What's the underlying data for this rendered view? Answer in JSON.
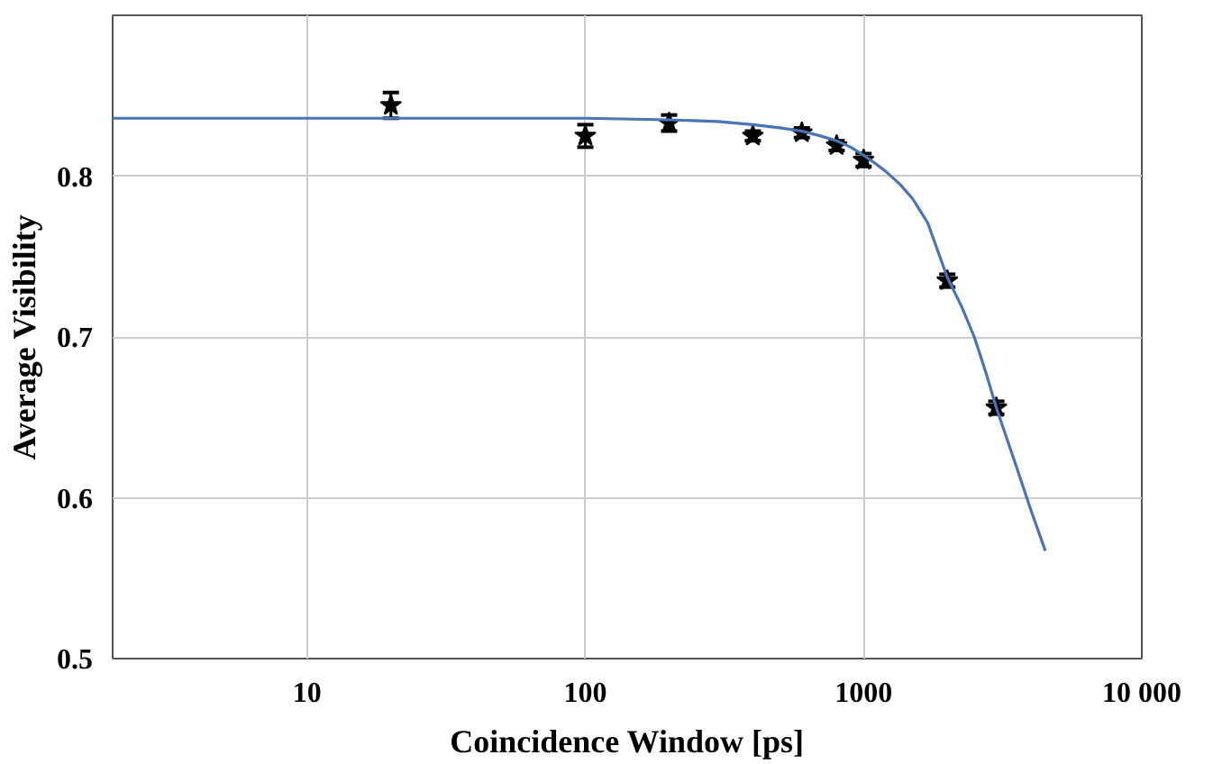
{
  "chart_data": {
    "type": "scatter",
    "xlabel": "Coincidence Window [ps]",
    "ylabel": "Average Visibility",
    "log": "x",
    "grid": true,
    "xlim": [
      2,
      10000
    ],
    "ylim": [
      0.5,
      0.9
    ],
    "xticks": [
      10,
      100,
      1000,
      {
        "value": 10000,
        "label": "10 000"
      }
    ],
    "yticks": [
      0.5,
      0.6,
      0.7,
      0.8
    ],
    "series": [
      {
        "color": "#000000",
        "marker": "star",
        "x": [
          20,
          100,
          200,
          400,
          600,
          800,
          1000,
          2000,
          3000
        ],
        "values": [
          0.844,
          0.825,
          0.833,
          0.825,
          0.827,
          0.819,
          0.81,
          0.735,
          0.656
        ],
        "errors": [
          0.008,
          0.007,
          0.005,
          0.003,
          0.003,
          0.003,
          0.004,
          0.004,
          0.004
        ]
      },
      {
        "type": "line",
        "color": "#4a74b8",
        "x": [
          2,
          50,
          100,
          200,
          300,
          400,
          500,
          600,
          700,
          800,
          900,
          1000,
          1100,
          1200,
          1350,
          1500,
          1700,
          2000,
          2250,
          2500,
          2750,
          3000,
          3500,
          4000,
          4500
        ],
        "values": [
          0.836,
          0.836,
          0.836,
          0.835,
          0.834,
          0.832,
          0.83,
          0.828,
          0.825,
          0.822,
          0.818,
          0.813,
          0.808,
          0.803,
          0.795,
          0.786,
          0.771,
          0.737,
          0.719,
          0.7,
          0.678,
          0.656,
          0.622,
          0.592,
          0.567
        ]
      }
    ]
  }
}
